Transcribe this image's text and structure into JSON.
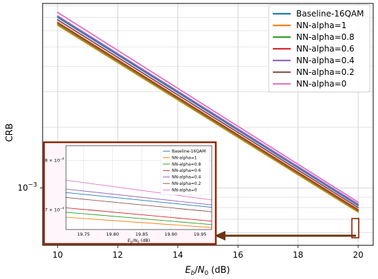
{
  "colors": {
    "Baseline-16QAM": "#1f77b4",
    "NN-alpha=1": "#ff7f0e",
    "NN-alpha=0.8": "#2ca02c",
    "NN-alpha=0.6": "#d62728",
    "NN-alpha=0.4": "#9467bd",
    "NN-alpha=0.2": "#8c564b",
    "NN-alpha=0": "#e377c2",
    "zoom_box": "#8b2500",
    "arrow": "#6b3410"
  },
  "chart_data": [
    {
      "type": "line",
      "xlabel": "E_b/N_0 (dB)",
      "xlabel_parts": {
        "e": "E",
        "b": "b",
        "slash": "/",
        "n": "N",
        "zero": "0",
        "unit": " (dB)"
      },
      "ylabel": "CRB",
      "yscale": "log",
      "xlim": [
        9.5,
        20.5
      ],
      "ylim": [
        0.00052,
        0.0082
      ],
      "xticks": [
        10,
        12,
        14,
        16,
        18,
        20
      ],
      "xtick_labels": [
        "10",
        "12",
        "14",
        "16",
        "18",
        "20"
      ],
      "ytick_label": {
        "base": "10",
        "exp": "−3"
      },
      "grid": true,
      "legend_position": "top-right",
      "series": [
        {
          "name": "Baseline-16QAM",
          "x": [
            10,
            20
          ],
          "y": [
            0.007,
            0.00082
          ]
        },
        {
          "name": "NN-alpha=1",
          "x": [
            10,
            20
          ],
          "y": [
            0.0064,
            0.00076
          ]
        },
        {
          "name": "NN-alpha=0.8",
          "x": [
            10,
            20
          ],
          "y": [
            0.0065,
            0.00077
          ]
        },
        {
          "name": "NN-alpha=0.6",
          "x": [
            10,
            20
          ],
          "y": [
            0.0066,
            0.00078
          ]
        },
        {
          "name": "NN-alpha=0.4",
          "x": [
            10,
            20
          ],
          "y": [
            0.0071,
            0.00083
          ]
        },
        {
          "name": "NN-alpha=0.2",
          "x": [
            10,
            20
          ],
          "y": [
            0.0068,
            0.0008
          ]
        },
        {
          "name": "NN-alpha=0",
          "x": [
            10,
            20
          ],
          "y": [
            0.0074,
            0.00085
          ]
        }
      ]
    },
    {
      "type": "line",
      "role": "inset-zoom",
      "xlabel": "E_b/N_0 (dB)",
      "xlim": [
        19.72,
        19.97
      ],
      "ylim": [
        0.00066,
        0.00083
      ],
      "xticks": [
        19.75,
        19.8,
        19.85,
        19.9,
        19.95
      ],
      "xtick_labels": [
        "19.75",
        "19.80",
        "19.85",
        "19.90",
        "19.95"
      ],
      "ytick_labels": [
        {
          "value": 0.0008,
          "mant": "8",
          "times": " × ",
          "base": "10",
          "exp": "−4"
        },
        {
          "value": 0.0007,
          "mant": "7",
          "times": " × ",
          "base": "10",
          "exp": "−4"
        }
      ],
      "grid": true,
      "legend_position": "top-right",
      "series": [
        {
          "name": "Baseline-16QAM",
          "x": [
            19.72,
            19.97
          ],
          "y": [
            0.000735,
            0.000705
          ]
        },
        {
          "name": "NN-alpha=1",
          "x": [
            19.72,
            19.97
          ],
          "y": [
            0.000685,
            0.000664
          ]
        },
        {
          "name": "NN-alpha=0.8",
          "x": [
            19.72,
            19.97
          ],
          "y": [
            0.000695,
            0.00067
          ]
        },
        {
          "name": "NN-alpha=0.6",
          "x": [
            19.72,
            19.97
          ],
          "y": [
            0.000704,
            0.000677
          ]
        },
        {
          "name": "NN-alpha=0.4",
          "x": [
            19.72,
            19.97
          ],
          "y": [
            0.000742,
            0.00071
          ]
        },
        {
          "name": "NN-alpha=0.2",
          "x": [
            19.72,
            19.97
          ],
          "y": [
            0.000725,
            0.000696
          ]
        },
        {
          "name": "NN-alpha=0",
          "x": [
            19.72,
            19.97
          ],
          "y": [
            0.00076,
            0.00072
          ]
        }
      ]
    }
  ]
}
